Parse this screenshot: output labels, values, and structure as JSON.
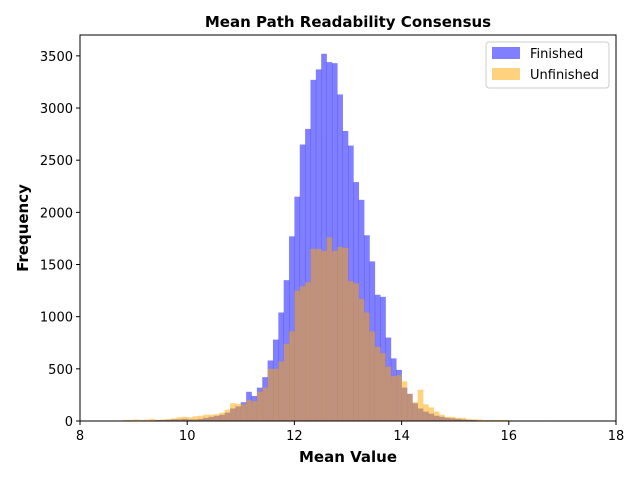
{
  "chart_data": {
    "type": "bar",
    "title": "Mean Path Readability Consensus",
    "xlabel": "Mean Value",
    "ylabel": "Frequency",
    "xlim": [
      8,
      18
    ],
    "ylim": [
      0,
      3700
    ],
    "xticks": [
      8,
      10,
      12,
      14,
      16,
      18
    ],
    "yticks": [
      0,
      500,
      1000,
      1500,
      2000,
      2500,
      3000,
      3500
    ],
    "grid": false,
    "legend_position": "top-right",
    "bin_width": 0.1,
    "series": [
      {
        "name": "Finished",
        "color": "#0000ff",
        "opacity": 0.5,
        "bins": [
          [
            9.4,
            10
          ],
          [
            9.5,
            10
          ],
          [
            9.6,
            10
          ],
          [
            9.7,
            15
          ],
          [
            9.8,
            15
          ],
          [
            9.9,
            20
          ],
          [
            10.0,
            15
          ],
          [
            10.1,
            15
          ],
          [
            10.2,
            20
          ],
          [
            10.3,
            30
          ],
          [
            10.4,
            40
          ],
          [
            10.5,
            50
          ],
          [
            10.6,
            60
          ],
          [
            10.7,
            80
          ],
          [
            10.8,
            120
          ],
          [
            10.9,
            140
          ],
          [
            11.0,
            180
          ],
          [
            11.1,
            280
          ],
          [
            11.2,
            240
          ],
          [
            11.3,
            320
          ],
          [
            11.4,
            420
          ],
          [
            11.5,
            580
          ],
          [
            11.6,
            780
          ],
          [
            11.7,
            1040
          ],
          [
            11.8,
            1350
          ],
          [
            11.9,
            1770
          ],
          [
            12.0,
            2150
          ],
          [
            12.1,
            2650
          ],
          [
            12.2,
            2800
          ],
          [
            12.3,
            3270
          ],
          [
            12.4,
            3370
          ],
          [
            12.5,
            3520
          ],
          [
            12.6,
            3440
          ],
          [
            12.7,
            3430
          ],
          [
            12.8,
            3130
          ],
          [
            12.9,
            2780
          ],
          [
            13.0,
            2640
          ],
          [
            13.1,
            2290
          ],
          [
            13.2,
            2120
          ],
          [
            13.3,
            1780
          ],
          [
            13.4,
            1530
          ],
          [
            13.5,
            1210
          ],
          [
            13.6,
            1190
          ],
          [
            13.7,
            800
          ],
          [
            13.8,
            600
          ],
          [
            13.9,
            490
          ],
          [
            14.0,
            320
          ],
          [
            14.1,
            260
          ],
          [
            14.2,
            170
          ],
          [
            14.3,
            120
          ],
          [
            14.4,
            90
          ],
          [
            14.5,
            70
          ],
          [
            14.6,
            50
          ],
          [
            14.7,
            40
          ],
          [
            14.8,
            30
          ],
          [
            14.9,
            25
          ],
          [
            15.0,
            20
          ],
          [
            15.1,
            15
          ],
          [
            15.2,
            10
          ],
          [
            15.3,
            10
          ]
        ]
      },
      {
        "name": "Unfinished",
        "color": "#ffa500",
        "opacity": 0.5,
        "bins": [
          [
            8.0,
            5
          ],
          [
            8.1,
            5
          ],
          [
            8.2,
            5
          ],
          [
            8.3,
            5
          ],
          [
            8.4,
            5
          ],
          [
            8.5,
            5
          ],
          [
            8.6,
            5
          ],
          [
            8.7,
            5
          ],
          [
            8.8,
            10
          ],
          [
            8.9,
            10
          ],
          [
            9.0,
            15
          ],
          [
            9.1,
            10
          ],
          [
            9.2,
            15
          ],
          [
            9.3,
            20
          ],
          [
            9.4,
            10
          ],
          [
            9.5,
            15
          ],
          [
            9.6,
            20
          ],
          [
            9.7,
            25
          ],
          [
            9.8,
            35
          ],
          [
            9.9,
            40
          ],
          [
            10.0,
            35
          ],
          [
            10.1,
            45
          ],
          [
            10.2,
            50
          ],
          [
            10.3,
            60
          ],
          [
            10.4,
            60
          ],
          [
            10.5,
            65
          ],
          [
            10.6,
            80
          ],
          [
            10.7,
            110
          ],
          [
            10.8,
            170
          ],
          [
            10.9,
            165
          ],
          [
            11.0,
            160
          ],
          [
            11.1,
            200
          ],
          [
            11.2,
            190
          ],
          [
            11.3,
            280
          ],
          [
            11.4,
            320
          ],
          [
            11.5,
            500
          ],
          [
            11.6,
            500
          ],
          [
            11.7,
            570
          ],
          [
            11.8,
            740
          ],
          [
            11.9,
            860
          ],
          [
            12.0,
            1250
          ],
          [
            12.1,
            1290
          ],
          [
            12.2,
            1330
          ],
          [
            12.3,
            1650
          ],
          [
            12.4,
            1650
          ],
          [
            12.5,
            1630
          ],
          [
            12.6,
            1760
          ],
          [
            12.7,
            1630
          ],
          [
            12.8,
            1670
          ],
          [
            12.9,
            1660
          ],
          [
            13.0,
            1340
          ],
          [
            13.1,
            1320
          ],
          [
            13.2,
            1170
          ],
          [
            13.3,
            1040
          ],
          [
            13.4,
            860
          ],
          [
            13.5,
            710
          ],
          [
            13.6,
            650
          ],
          [
            13.7,
            520
          ],
          [
            13.8,
            430
          ],
          [
            13.9,
            440
          ],
          [
            14.0,
            380
          ],
          [
            14.1,
            260
          ],
          [
            14.2,
            180
          ],
          [
            14.3,
            300
          ],
          [
            14.4,
            160
          ],
          [
            14.5,
            130
          ],
          [
            14.6,
            90
          ],
          [
            14.7,
            60
          ],
          [
            14.8,
            40
          ],
          [
            14.9,
            40
          ],
          [
            15.0,
            30
          ],
          [
            15.1,
            30
          ],
          [
            15.2,
            20
          ],
          [
            15.3,
            15
          ],
          [
            15.4,
            15
          ],
          [
            15.5,
            10
          ],
          [
            15.6,
            10
          ],
          [
            15.7,
            10
          ],
          [
            15.8,
            10
          ],
          [
            15.9,
            10
          ],
          [
            16.0,
            5
          ],
          [
            16.1,
            5
          ],
          [
            16.2,
            5
          ],
          [
            16.3,
            5
          ],
          [
            16.4,
            5
          ],
          [
            16.5,
            5
          ],
          [
            16.6,
            5
          ]
        ]
      }
    ]
  }
}
